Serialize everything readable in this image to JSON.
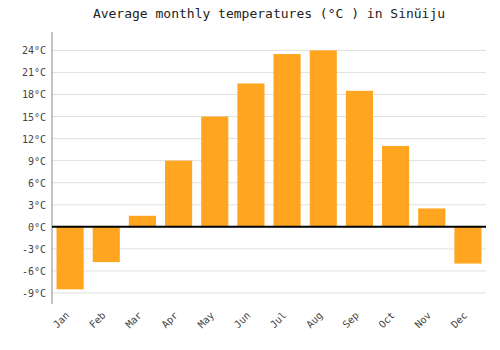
{
  "chart_data": {
    "type": "bar",
    "title": "Average monthly temperatures (°C ) in Sinŭiju",
    "categories": [
      "Jan",
      "Feb",
      "Mar",
      "Apr",
      "May",
      "Jun",
      "Jul",
      "Aug",
      "Sep",
      "Oct",
      "Nov",
      "Dec"
    ],
    "values": [
      -8.5,
      -4.8,
      1.5,
      9.0,
      15.0,
      19.5,
      23.5,
      24.0,
      18.5,
      11.0,
      2.5,
      -5.0
    ],
    "color": "#FFA520",
    "ylim": [
      -10.5,
      26.5
    ],
    "yticks": [
      {
        "value": -9,
        "label": "-9°C"
      },
      {
        "value": -6,
        "label": "-6°C"
      },
      {
        "value": -3,
        "label": "-3°C"
      },
      {
        "value": 0,
        "label": "0°C"
      },
      {
        "value": 3,
        "label": "3°C"
      },
      {
        "value": 6,
        "label": "6°C"
      },
      {
        "value": 9,
        "label": "9°C"
      },
      {
        "value": 12,
        "label": "12°C"
      },
      {
        "value": 15,
        "label": "15°C"
      },
      {
        "value": 18,
        "label": "18°C"
      },
      {
        "value": 21,
        "label": "21°C"
      },
      {
        "value": 24,
        "label": "24°C"
      }
    ],
    "grid": true
  }
}
